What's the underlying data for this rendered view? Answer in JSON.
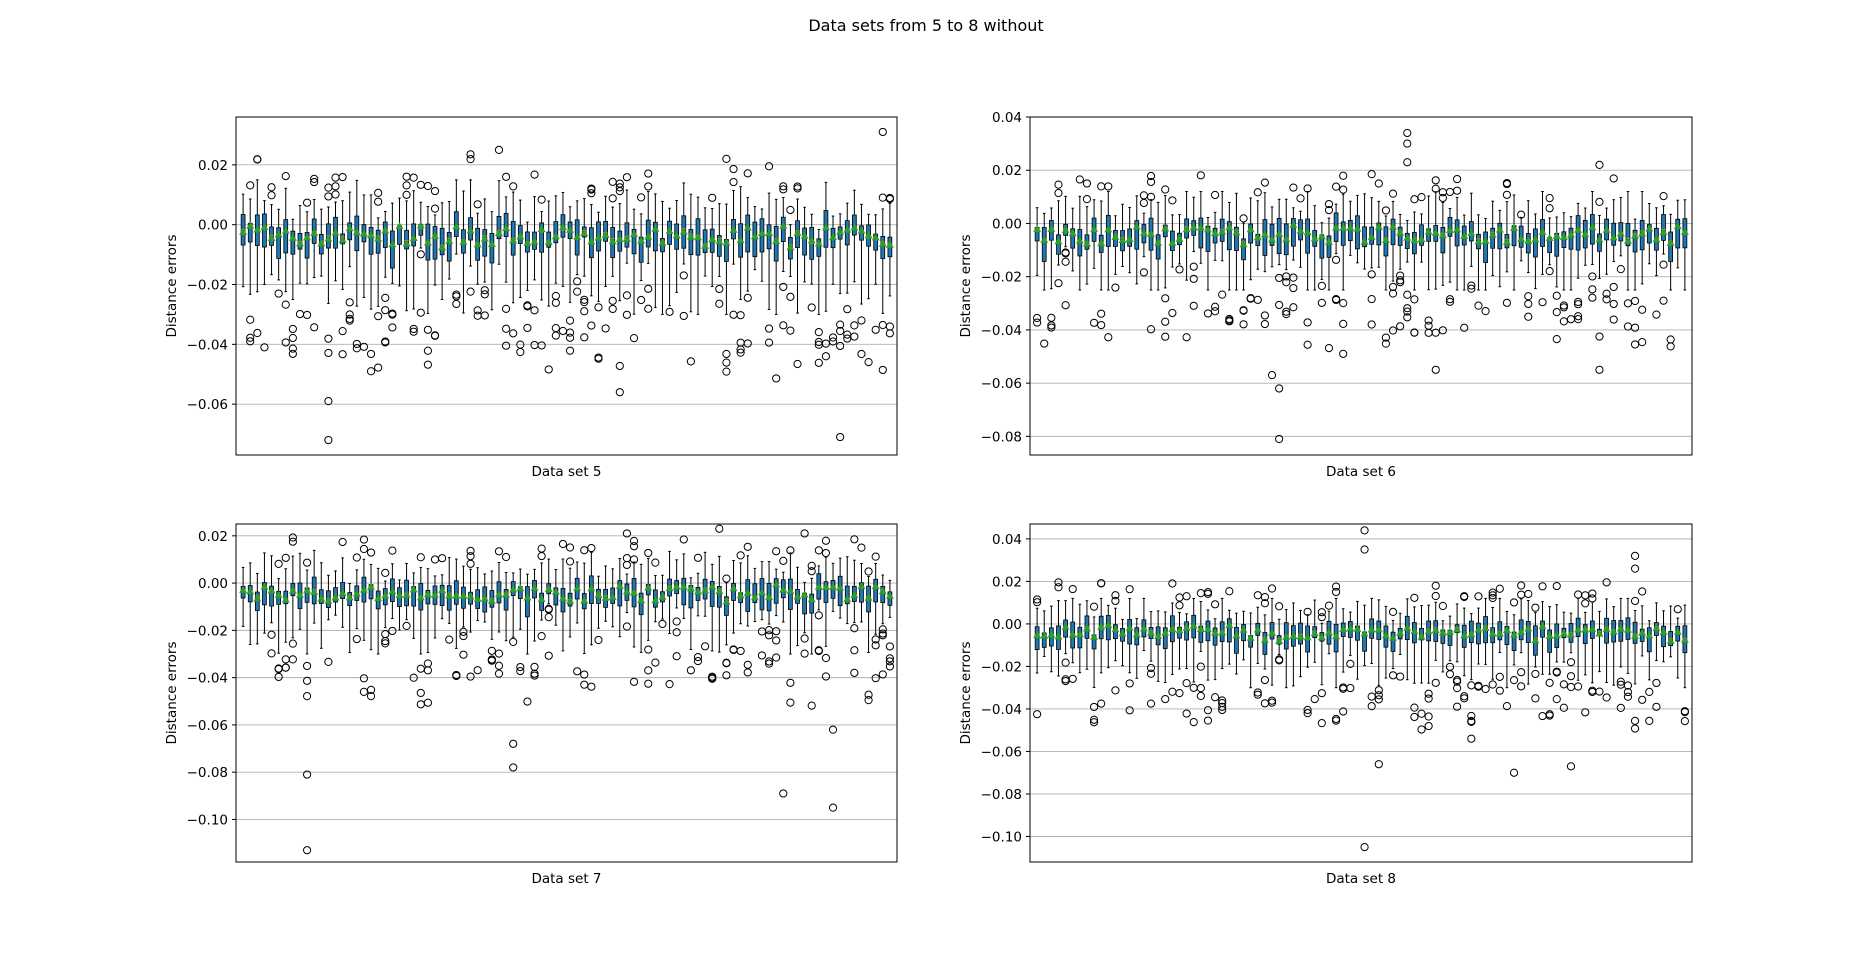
{
  "figure": {
    "suptitle": "Data sets from 5 to 8 without"
  },
  "colors": {
    "box": "#1f77b4",
    "median": "#ff7f0e",
    "mean_marker": "#2ca02c",
    "grid": "#b0b0b0",
    "outlier_edge": "#000000"
  },
  "chart_data": [
    {
      "type": "box",
      "xlabel": "Data set 5",
      "ylabel": "Distance errors",
      "ylim": [
        -0.077,
        0.036
      ],
      "yticks": [
        0.02,
        0.0,
        -0.02,
        -0.04,
        -0.06
      ],
      "ytick_labels": [
        "0.02",
        "0.00",
        "−0.02",
        "−0.04",
        "−0.06"
      ],
      "grid": "horizontal",
      "box_count": 92,
      "seed": 5,
      "whisker_range": [
        -0.03,
        0.015
      ],
      "extreme_outliers": [
        {
          "x": 12,
          "y": -0.072
        },
        {
          "x": 12,
          "y": -0.059
        },
        {
          "x": 53,
          "y": -0.056
        },
        {
          "x": 84,
          "y": -0.071
        },
        {
          "x": 90,
          "y": 0.031
        },
        {
          "x": 36,
          "y": 0.025
        },
        {
          "x": 68,
          "y": 0.022
        },
        {
          "x": 18,
          "y": -0.049
        },
        {
          "x": 3,
          "y": -0.041
        }
      ]
    },
    {
      "type": "box",
      "xlabel": "Data set 6",
      "ylabel": "Distance errors",
      "ylim": [
        -0.087,
        0.04
      ],
      "yticks": [
        0.04,
        0.02,
        0.0,
        -0.02,
        -0.04,
        -0.06,
        -0.08
      ],
      "ytick_labels": [
        "0.04",
        "0.02",
        "0.00",
        "−0.02",
        "−0.04",
        "−0.06",
        "−0.08"
      ],
      "grid": "horizontal",
      "box_count": 92,
      "seed": 6,
      "whisker_range": [
        -0.025,
        0.012
      ],
      "extreme_outliers": [
        {
          "x": 34,
          "y": -0.081
        },
        {
          "x": 34,
          "y": -0.062
        },
        {
          "x": 33,
          "y": -0.057
        },
        {
          "x": 52,
          "y": 0.034
        },
        {
          "x": 52,
          "y": 0.03
        },
        {
          "x": 52,
          "y": 0.023
        },
        {
          "x": 79,
          "y": 0.022
        },
        {
          "x": 79,
          "y": -0.055
        },
        {
          "x": 56,
          "y": -0.055
        },
        {
          "x": 43,
          "y": -0.049
        }
      ]
    },
    {
      "type": "box",
      "xlabel": "Data set 7",
      "ylabel": "Distance errors",
      "ylim": [
        -0.118,
        0.025
      ],
      "yticks": [
        0.02,
        0.0,
        -0.02,
        -0.04,
        -0.06,
        -0.08,
        -0.1
      ],
      "ytick_labels": [
        "0.02",
        "0.00",
        "−0.02",
        "−0.04",
        "−0.06",
        "−0.08",
        "−0.10"
      ],
      "grid": "horizontal",
      "box_count": 92,
      "seed": 7,
      "whisker_range": [
        -0.03,
        0.014
      ],
      "extreme_outliers": [
        {
          "x": 9,
          "y": -0.113
        },
        {
          "x": 9,
          "y": -0.081
        },
        {
          "x": 38,
          "y": -0.078
        },
        {
          "x": 38,
          "y": -0.068
        },
        {
          "x": 76,
          "y": -0.089
        },
        {
          "x": 83,
          "y": -0.095
        },
        {
          "x": 83,
          "y": -0.062
        },
        {
          "x": 67,
          "y": 0.023
        },
        {
          "x": 54,
          "y": 0.021
        },
        {
          "x": 79,
          "y": 0.021
        }
      ]
    },
    {
      "type": "box",
      "xlabel": "Data set 8",
      "ylabel": "Distance errors",
      "ylim": [
        -0.112,
        0.047
      ],
      "yticks": [
        0.04,
        0.02,
        0.0,
        -0.02,
        -0.04,
        -0.06,
        -0.08,
        -0.1
      ],
      "ytick_labels": [
        "0.04",
        "0.02",
        "0.00",
        "−0.02",
        "−0.04",
        "−0.06",
        "−0.08",
        "−0.10"
      ],
      "grid": "horizontal",
      "box_count": 92,
      "seed": 8,
      "whisker_range": [
        -0.03,
        0.012
      ],
      "extreme_outliers": [
        {
          "x": 46,
          "y": -0.105
        },
        {
          "x": 46,
          "y": 0.044
        },
        {
          "x": 46,
          "y": 0.035
        },
        {
          "x": 48,
          "y": -0.066
        },
        {
          "x": 75,
          "y": -0.067
        },
        {
          "x": 67,
          "y": -0.07
        },
        {
          "x": 84,
          "y": 0.032
        },
        {
          "x": 84,
          "y": 0.026
        },
        {
          "x": 19,
          "y": 0.019
        },
        {
          "x": 61,
          "y": -0.054
        }
      ]
    }
  ]
}
